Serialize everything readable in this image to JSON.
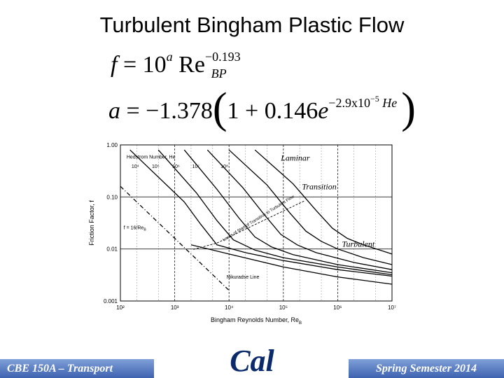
{
  "slide": {
    "title": "Turbulent Bingham Plastic Flow",
    "equation1": {
      "lhs": "f",
      "eq": " = 10",
      "exp_a": "a",
      "re": " Re",
      "exp_re": "−0.193",
      "sub_bp": "BP"
    },
    "equation2": {
      "lhs": "a",
      "rhs_start": " = −1.378",
      "paren_open": "(",
      "inner": "1 + 0.146",
      "e": "e",
      "exp": "−2.9x10",
      "exp_sup": "−5",
      "exp_he": " He",
      "paren_close": ")"
    },
    "footer_left": "CBE 150A – Transport",
    "footer_right": "Spring Semester 2014",
    "logo_text": "Cal"
  },
  "colors": {
    "footer": "#4a6fbf",
    "logo": "#0a2a6b",
    "ink": "#000000"
  },
  "chart_data": {
    "type": "line",
    "xlabel": "Bingham Reynolds Number, Re",
    "xlabel_sub": "B",
    "ylabel": "Friction Factor, f",
    "x_scale": "log",
    "y_scale": "log",
    "xlim": [
      100,
      10000000
    ],
    "ylim": [
      0.001,
      1.0
    ],
    "x_ticks": [
      {
        "v": 100,
        "label": "10²"
      },
      {
        "v": 1000,
        "label": "10³"
      },
      {
        "v": 10000,
        "label": "10⁴"
      },
      {
        "v": 100000,
        "label": "10⁵"
      },
      {
        "v": 1000000,
        "label": "10⁶"
      },
      {
        "v": 10000000,
        "label": "10⁷"
      }
    ],
    "y_ticks": [
      {
        "v": 1.0,
        "label": "1.00"
      },
      {
        "v": 0.1,
        "label": "0.10"
      },
      {
        "v": 0.01,
        "label": "0.01"
      },
      {
        "v": 0.001,
        "label": "0.001"
      }
    ],
    "grid": true,
    "annotations": {
      "hedstrom": "Hedstrom Number, He",
      "he_labels": [
        {
          "label": "10⁴",
          "x": 160,
          "y": 0.36
        },
        {
          "label": "10⁵",
          "x": 380,
          "y": 0.36
        },
        {
          "label": "10⁶",
          "x": 900,
          "y": 0.36
        },
        {
          "label": "10⁷",
          "x": 2100,
          "y": 0.36
        },
        {
          "label": "10⁸",
          "x": 7000,
          "y": 0.36
        }
      ],
      "laminar": "Laminar",
      "transition": "Transition",
      "turbulent": "Turbulent",
      "onset": "Locus of Start of Transition to Turbulent Flow",
      "lam_eq": "f = 16/Re",
      "lam_eq_sub": "B",
      "nikuradse": "Nikuradse Line"
    },
    "series": [
      {
        "x": [
          100,
          10000
        ],
        "y": [
          0.16,
          0.0016
        ]
      },
      {
        "x": [
          150,
          1500,
          3000,
          6000,
          20000,
          100000,
          1000000,
          10000000
        ],
        "y": [
          0.8,
          0.08,
          0.03,
          0.012,
          0.0085,
          0.006,
          0.004,
          0.003
        ]
      },
      {
        "x": [
          500,
          2500,
          6000,
          12000,
          30000,
          100000,
          1000000,
          10000000
        ],
        "y": [
          0.8,
          0.12,
          0.035,
          0.015,
          0.0095,
          0.0068,
          0.0045,
          0.0032
        ]
      },
      {
        "x": [
          1500,
          6000,
          15000,
          30000,
          60000,
          150000,
          1000000,
          10000000
        ],
        "y": [
          0.8,
          0.14,
          0.04,
          0.017,
          0.011,
          0.0078,
          0.005,
          0.0035
        ]
      },
      {
        "x": [
          4000,
          18000,
          45000,
          90000,
          180000,
          400000,
          2000000,
          10000000
        ],
        "y": [
          0.8,
          0.15,
          0.045,
          0.019,
          0.012,
          0.0085,
          0.0055,
          0.004
        ]
      },
      {
        "x": [
          10000,
          50000,
          130000,
          260000,
          500000,
          1000000,
          3000000,
          10000000
        ],
        "y": [
          0.8,
          0.17,
          0.05,
          0.022,
          0.014,
          0.01,
          0.0068,
          0.005
        ]
      },
      {
        "x": [
          30000,
          150000,
          400000,
          800000,
          1500000,
          3000000,
          10000000
        ],
        "y": [
          0.8,
          0.18,
          0.055,
          0.025,
          0.016,
          0.012,
          0.008
        ]
      },
      {
        "x": [
          2000,
          10000,
          100000,
          1000000,
          10000000
        ],
        "y": [
          0.012,
          0.008,
          0.0045,
          0.0029,
          0.0021
        ]
      }
    ],
    "onset_locus": {
      "x": [
        2200,
        6000,
        20000,
        70000,
        250000
      ],
      "y": [
        0.0098,
        0.013,
        0.024,
        0.045,
        0.085
      ]
    }
  }
}
